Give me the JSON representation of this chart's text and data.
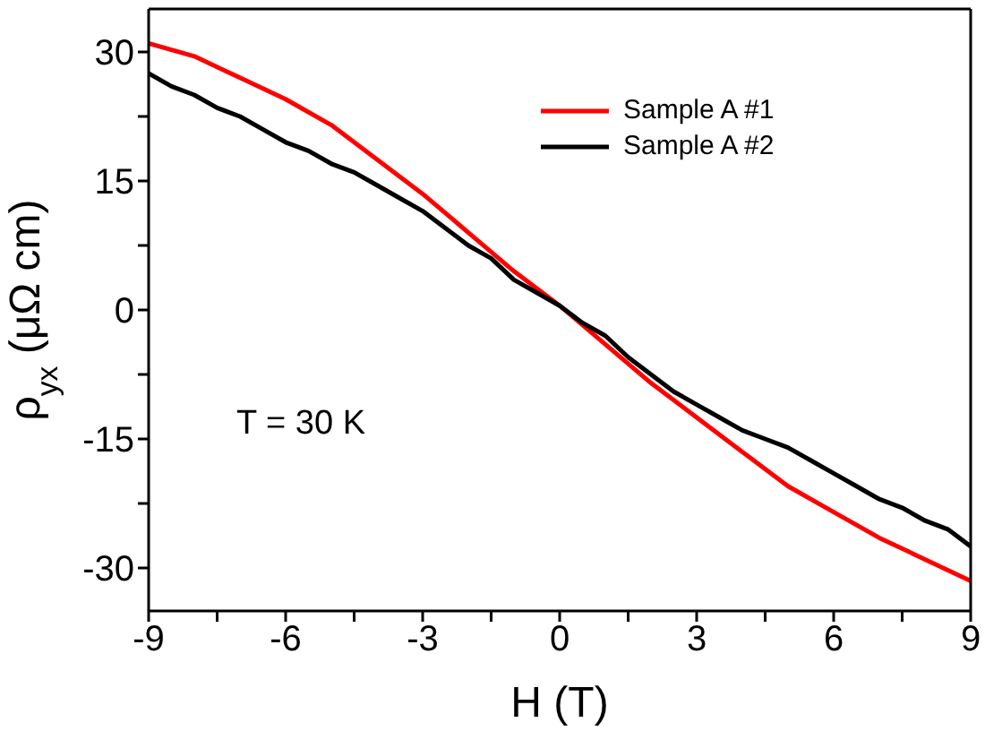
{
  "chart_data": {
    "type": "line",
    "xlabel": "H (T)",
    "ylabel": "ρ$_{yx}$ (μΩ cm)",
    "annotations": [
      "T = 30 K"
    ],
    "xlim": [
      -9,
      9
    ],
    "xticks": [
      -9,
      {
        "value": -7.5,
        "label": null
      },
      -6,
      {
        "value": -4.5,
        "label": null
      },
      -3,
      {
        "value": -1.5,
        "label": null
      },
      0,
      {
        "value": 1.5,
        "label": null
      },
      3,
      {
        "value": 4.5,
        "label": null
      },
      6,
      {
        "value": 7.5,
        "label": null
      },
      9
    ],
    "ylim": [
      -35,
      35
    ],
    "yticks": [
      -30,
      {
        "value": -22.5,
        "label": null
      },
      -15,
      {
        "value": -7.5,
        "label": null
      },
      0,
      {
        "value": 7.5,
        "label": null
      },
      15,
      {
        "value": 22.5,
        "label": null
      },
      30
    ],
    "grid": false,
    "legend": "top right",
    "line_style": "solid",
    "marker": "none",
    "series": [
      {
        "name": "Sample A #1",
        "color": "#ff0000",
        "x": [
          -9,
          -8,
          -7,
          -6,
          -5,
          -4,
          -3,
          -2,
          -1,
          0,
          1,
          2,
          3,
          4,
          5,
          6,
          7,
          8,
          9
        ],
        "values": [
          31,
          29.5,
          27,
          24.5,
          21.5,
          17.5,
          13.5,
          9,
          4.5,
          0.5,
          -4,
          -8.5,
          -12.5,
          -16.5,
          -20.5,
          -23.5,
          -26.5,
          -29,
          -31.5
        ]
      },
      {
        "name": "Sample A #2",
        "color": "#000000",
        "x": [
          -9,
          -8.5,
          -8,
          -7.5,
          -7,
          -6.5,
          -6,
          -5.5,
          -5,
          -4.5,
          -4,
          -3.5,
          -3,
          -2.5,
          -2,
          -1.5,
          -1,
          -0.5,
          0,
          0.5,
          1,
          1.5,
          2,
          2.5,
          3,
          3.5,
          4,
          4.5,
          5,
          5.5,
          6,
          6.5,
          7,
          7.5,
          8,
          8.5,
          9
        ],
        "values": [
          27.5,
          26,
          25,
          23.5,
          22.5,
          21,
          19.5,
          18.5,
          17,
          16,
          14.5,
          13,
          11.5,
          9.5,
          7.5,
          6,
          3.5,
          2,
          0.5,
          -1.5,
          -3,
          -5.5,
          -7.5,
          -9.5,
          -11,
          -12.5,
          -14,
          -15,
          -16,
          -17.5,
          -19,
          -20.5,
          -22,
          -23,
          -24.5,
          -25.5,
          -27.5
        ]
      }
    ]
  }
}
